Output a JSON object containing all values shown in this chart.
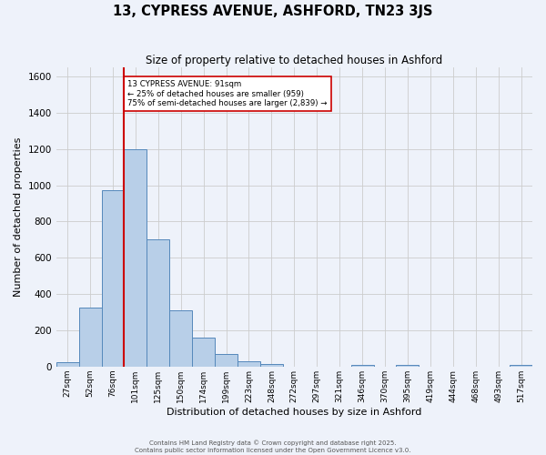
{
  "title": "13, CYPRESS AVENUE, ASHFORD, TN23 3JS",
  "subtitle": "Size of property relative to detached houses in Ashford",
  "xlabel": "Distribution of detached houses by size in Ashford",
  "ylabel": "Number of detached properties",
  "bin_labels": [
    "27sqm",
    "52sqm",
    "76sqm",
    "101sqm",
    "125sqm",
    "150sqm",
    "174sqm",
    "199sqm",
    "223sqm",
    "248sqm",
    "272sqm",
    "297sqm",
    "321sqm",
    "346sqm",
    "370sqm",
    "395sqm",
    "419sqm",
    "444sqm",
    "468sqm",
    "493sqm",
    "517sqm"
  ],
  "bar_heights": [
    25,
    325,
    975,
    1200,
    700,
    310,
    160,
    70,
    30,
    15,
    0,
    0,
    0,
    10,
    0,
    10,
    0,
    0,
    0,
    0,
    10
  ],
  "bar_color": "#b8cfe8",
  "bar_edge_color": "#5588bb",
  "vline_color": "#cc0000",
  "vline_bin_index": 3,
  "annotation_text": "13 CYPRESS AVENUE: 91sqm\n← 25% of detached houses are smaller (959)\n75% of semi-detached houses are larger (2,839) →",
  "annotation_box_color": "#ffffff",
  "annotation_box_edge_color": "#cc0000",
  "grid_color": "#cccccc",
  "background_color": "#eef2fa",
  "ylim": [
    0,
    1650
  ],
  "yticks": [
    0,
    200,
    400,
    600,
    800,
    1000,
    1200,
    1400,
    1600
  ],
  "footer1": "Contains HM Land Registry data © Crown copyright and database right 2025.",
  "footer2": "Contains public sector information licensed under the Open Government Licence v3.0."
}
